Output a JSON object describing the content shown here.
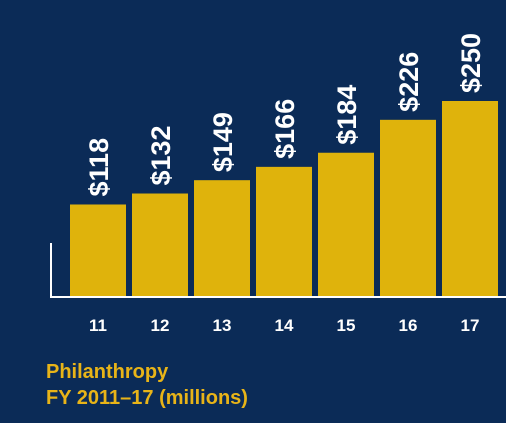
{
  "chart_data": {
    "type": "bar",
    "categories": [
      "11",
      "12",
      "13",
      "14",
      "15",
      "16",
      "17"
    ],
    "values": [
      118,
      132,
      149,
      166,
      184,
      226,
      250
    ],
    "data_labels": [
      "$118",
      "$132",
      "$149",
      "$166",
      "$184",
      "$226",
      "$250"
    ],
    "title": "Philanthropy",
    "subtitle": "FY 2011–17 (millions)",
    "xlabel": "",
    "ylabel": "",
    "ylim": [
      0,
      250
    ],
    "grid": false,
    "legend": "none"
  },
  "colors": {
    "background": "#0b2b57",
    "bar": "#dfb30c",
    "axis": "#ffffff",
    "label": "#ffffff",
    "caption": "#e8b418"
  }
}
